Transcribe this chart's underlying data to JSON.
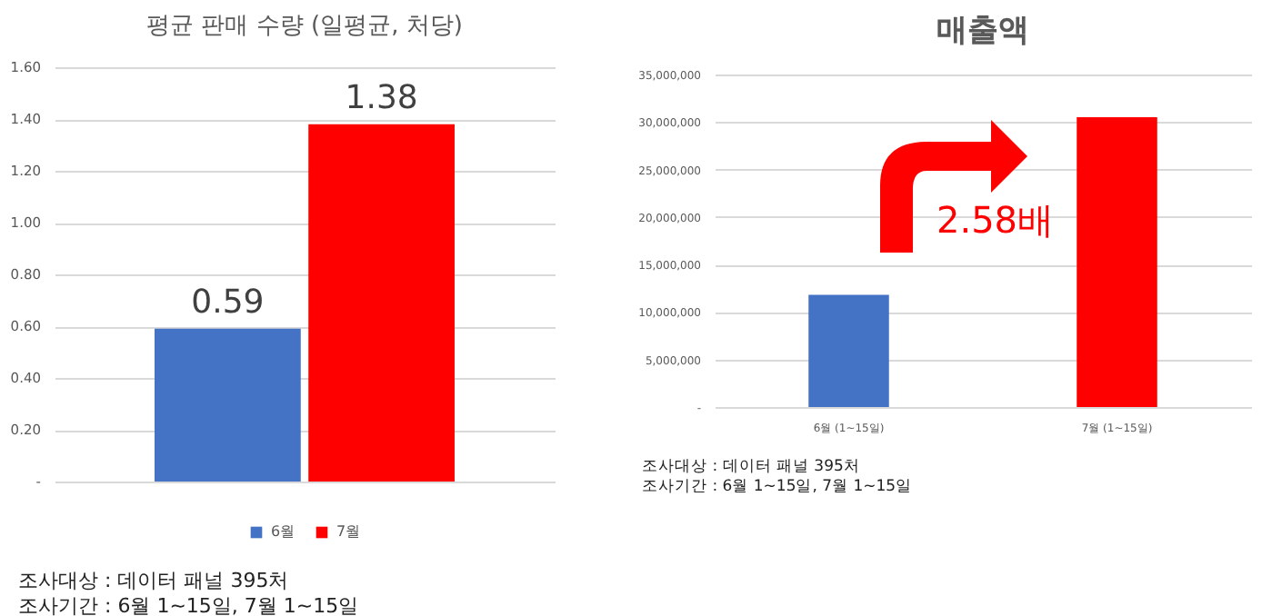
{
  "chart_data": [
    {
      "type": "bar",
      "title": "평균 판매 수량 (일평균, 처당)",
      "categories": [
        null
      ],
      "series": [
        {
          "name": "6월",
          "color": "#4472c4",
          "values": [
            0.59
          ]
        },
        {
          "name": "7월",
          "color": "#ff0000",
          "values": [
            1.38
          ]
        }
      ],
      "ylim": [
        0,
        1.6
      ],
      "yticks": [
        {
          "value": 0,
          "label": "-"
        },
        {
          "value": 0.2,
          "label": "0.20"
        },
        {
          "value": 0.4,
          "label": "0.40"
        },
        {
          "value": 0.6,
          "label": "0.60"
        },
        {
          "value": 0.8,
          "label": "0.80"
        },
        {
          "value": 1,
          "label": "1.00"
        },
        {
          "value": 1.2,
          "label": "1.20"
        },
        {
          "value": 1.4,
          "label": "1.40"
        },
        {
          "value": 1.6,
          "label": "1.60"
        }
      ],
      "grid": "y",
      "legend": "bottom",
      "data_labels": true,
      "annotations": [
        "조사대상 : 데이터 패널 395처",
        "조사기간 : 6월 1~15일, 7월 1~15일"
      ]
    },
    {
      "type": "bar",
      "title": "매출액",
      "categories": [
        "6월 (1~15일)",
        "7월 (1~15일)"
      ],
      "values": [
        11800000,
        30500000
      ],
      "colors": [
        "#4472c4",
        "#ff0000"
      ],
      "ylim": [
        0,
        35000000
      ],
      "yticks": [
        {
          "value": 0,
          "label": "-"
        },
        {
          "value": 5000000,
          "label": "5,000,000"
        },
        {
          "value": 10000000,
          "label": "10,000,000"
        },
        {
          "value": 15000000,
          "label": "15,000,000"
        },
        {
          "value": 20000000,
          "label": "20,000,000"
        },
        {
          "value": 25000000,
          "label": "25,000,000"
        },
        {
          "value": 30000000,
          "label": "30,000,000"
        },
        {
          "value": 35000000,
          "label": "35,000,000"
        }
      ],
      "grid": "y",
      "annotations": [
        "2.58배",
        "조사대상 : 데이터 패널 395처",
        "조사기간 : 6월 1~15일, 7월 1~15일"
      ]
    }
  ]
}
